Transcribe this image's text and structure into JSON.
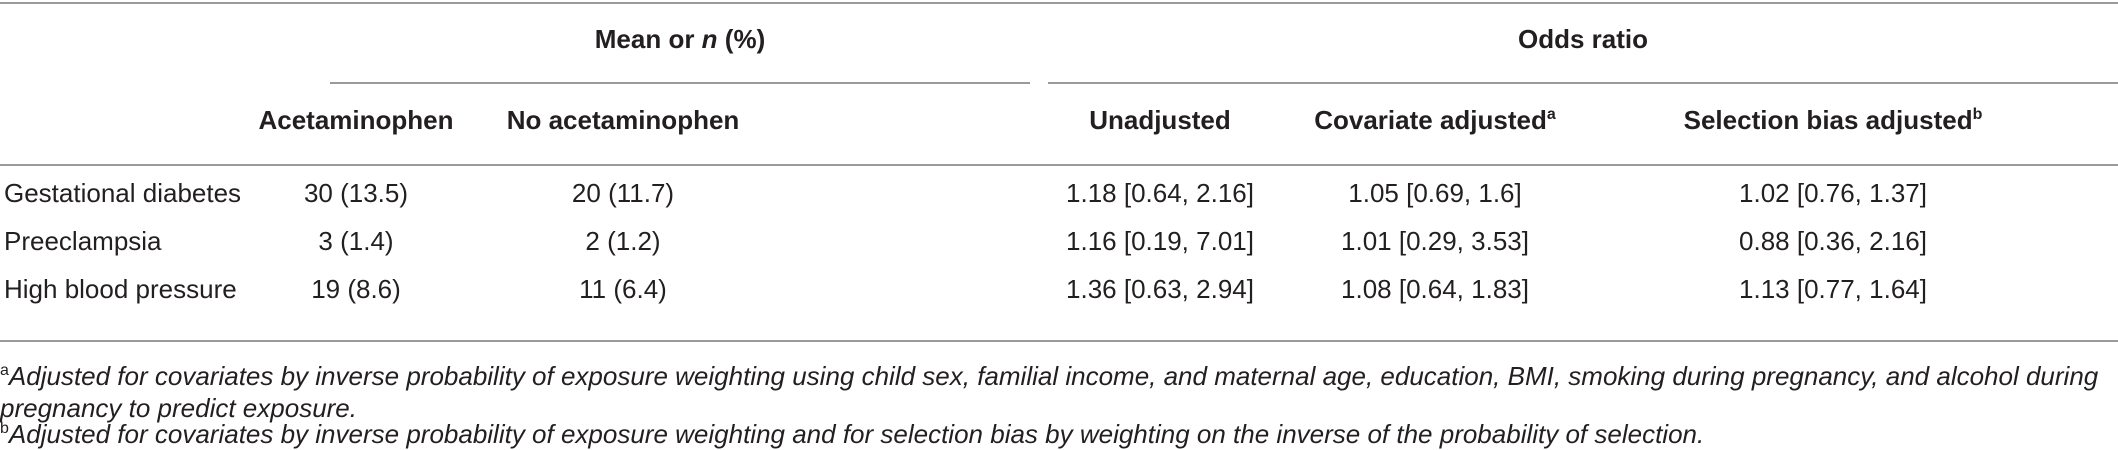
{
  "table": {
    "group_headers": {
      "mean_prefix": "Mean or ",
      "mean_italic": "n",
      "mean_suffix": " (%)",
      "odds_ratio": "Odds ratio"
    },
    "column_headers": {
      "acetaminophen": "Acetaminophen",
      "no_acetaminophen": "No acetaminophen",
      "unadjusted": "Unadjusted",
      "covariate_adjusted": "Covariate adjusted",
      "covariate_adjusted_mark": "a",
      "selection_bias_adjusted": "Selection bias adjusted",
      "selection_bias_adjusted_mark": "b"
    },
    "rows": [
      {
        "label": "Gestational diabetes",
        "acetaminophen": "30 (13.5)",
        "no_acetaminophen": "20 (11.7)",
        "unadjusted": "1.18 [0.64, 2.16]",
        "covariate_adjusted": "1.05 [0.69, 1.6]",
        "selection_bias_adjusted": "1.02 [0.76, 1.37]"
      },
      {
        "label": "Preeclampsia",
        "acetaminophen": "3 (1.4)",
        "no_acetaminophen": "2 (1.2)",
        "unadjusted": "1.16 [0.19, 7.01]",
        "covariate_adjusted": "1.01 [0.29, 3.53]",
        "selection_bias_adjusted": "0.88 [0.36, 2.16]"
      },
      {
        "label": "High blood pressure",
        "acetaminophen": "19 (8.6)",
        "no_acetaminophen": "11 (6.4)",
        "unadjusted": "1.36 [0.63, 2.94]",
        "covariate_adjusted": "1.08 [0.64, 1.83]",
        "selection_bias_adjusted": "1.13 [0.77, 1.64]"
      }
    ]
  },
  "footnotes": [
    {
      "mark": "a",
      "text": "Adjusted for covariates by inverse probability of exposure weighting using child sex, familial income, and maternal age, education, BMI, smoking during pregnancy, and alcohol during pregnancy to predict exposure."
    },
    {
      "mark": "b",
      "text": "Adjusted for covariates by inverse probability of exposure weighting and for selection bias by weighting on the inverse of the probability of selection."
    }
  ]
}
